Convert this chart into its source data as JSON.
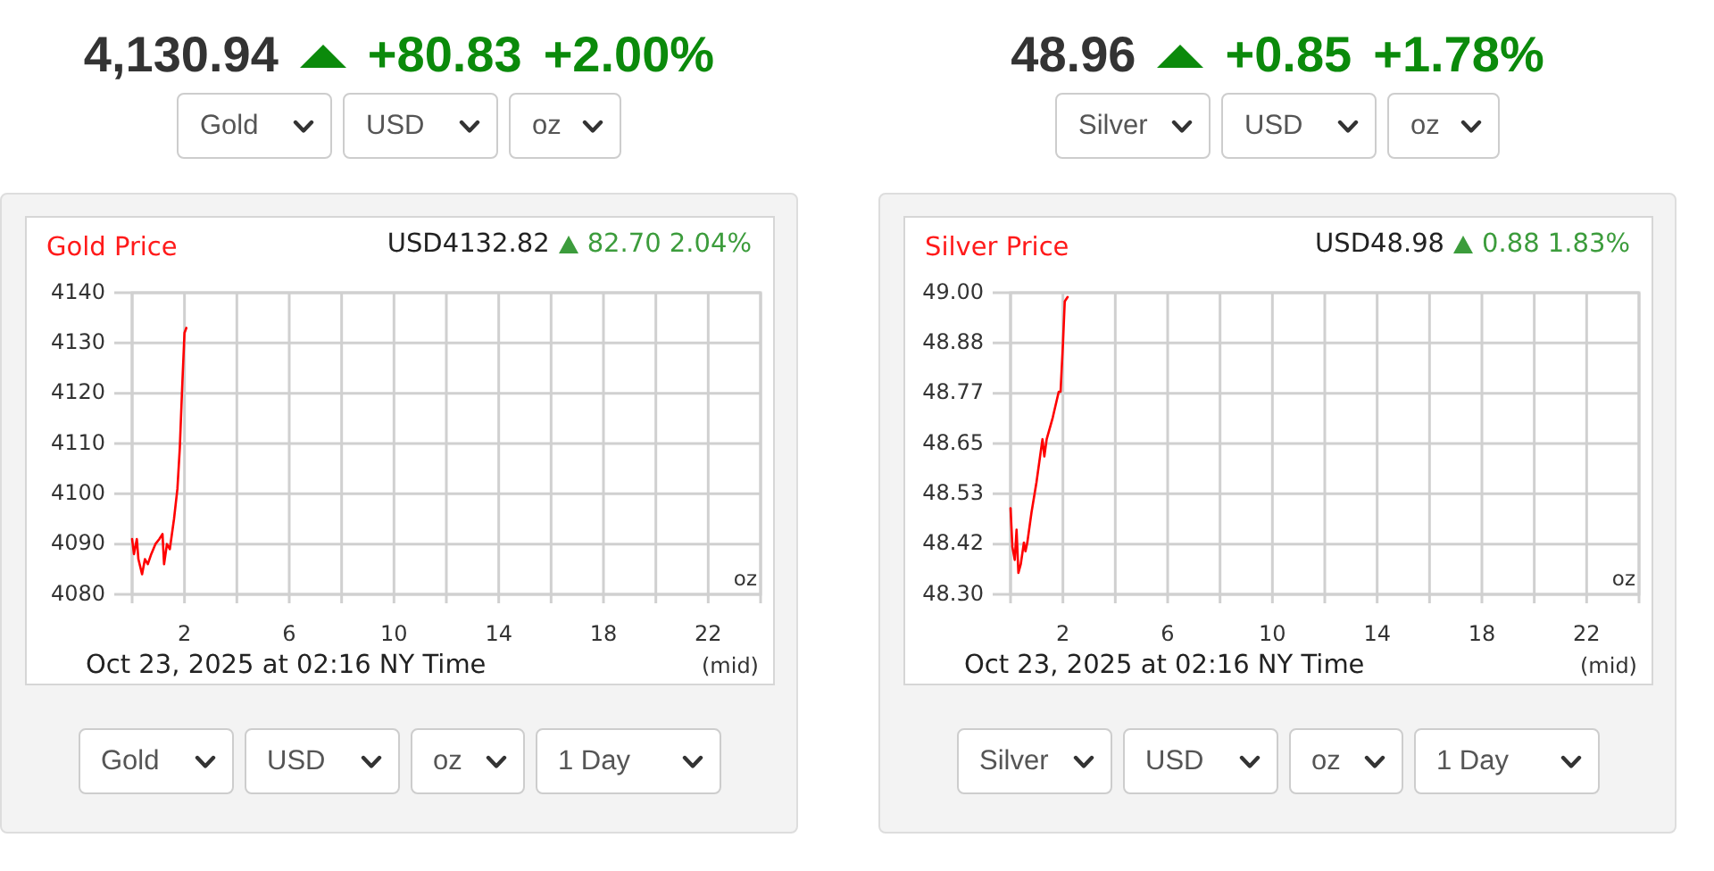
{
  "chart_data": [
    {
      "type": "line",
      "title": "Gold Price",
      "subtitle": "USD4132.82",
      "annotations": [
        "4,130.94",
        "+80.83",
        "+2.00%",
        "Gold",
        "USD",
        "oz",
        "82.70 2.04%",
        "oz",
        "Oct 23, 2025 at 02:16 NY Time",
        "(mid)",
        "Gold",
        "USD",
        "oz",
        "1 Day"
      ],
      "x": [
        0,
        0.07,
        0.18,
        0.24,
        0.38,
        0.49,
        0.6,
        0.73,
        0.89,
        1.04,
        1.16,
        1.22,
        1.33,
        1.44,
        1.6,
        1.73,
        1.82,
        1.91,
        2.0,
        2.07
      ],
      "series": [
        {
          "color": "#ff0000",
          "values": [
            4091,
            4088,
            4091,
            4087,
            4084,
            4087,
            4086,
            4088,
            4090,
            4091,
            4092,
            4086,
            4090,
            4089,
            4095,
            4101,
            4109,
            4121,
            4132,
            4133
          ]
        }
      ],
      "xlim": [
        0,
        24
      ],
      "xticks": [
        {
          "value": 0,
          "label": null
        },
        2,
        {
          "value": 4,
          "label": null
        },
        6,
        {
          "value": 8,
          "label": null
        },
        10,
        {
          "value": 12,
          "label": null
        },
        14,
        {
          "value": 16,
          "label": null
        },
        18,
        {
          "value": 20,
          "label": null
        },
        22,
        {
          "value": 24,
          "label": null
        }
      ],
      "ylim": [
        4080,
        4140
      ],
      "yticks": [
        4080,
        4090,
        4100,
        4110,
        4120,
        4130,
        4140
      ],
      "grid": true
    },
    {
      "type": "line",
      "title": "Silver Price",
      "subtitle": "USD48.98",
      "annotations": [
        "48.96",
        "+0.85",
        "+1.78%",
        "Silver",
        "USD",
        "oz",
        "0.88 1.83%",
        "oz",
        "Oct 23, 2025 at 02:16 NY Time",
        "(mid)",
        "Silver",
        "USD",
        "oz",
        "1 Day"
      ],
      "x": [
        0,
        0.07,
        0.16,
        0.23,
        0.3,
        0.39,
        0.51,
        0.57,
        0.64,
        0.8,
        0.99,
        1.15,
        1.22,
        1.29,
        1.38,
        1.61,
        1.84,
        1.91,
        2.0,
        2.07,
        2.18
      ],
      "series": [
        {
          "color": "#ff0000",
          "values": [
            48.5,
            48.41,
            48.38,
            48.45,
            48.35,
            48.37,
            48.42,
            48.4,
            48.42,
            48.49,
            48.56,
            48.63,
            48.66,
            48.62,
            48.66,
            48.71,
            48.77,
            48.77,
            48.88,
            48.98,
            48.99
          ]
        }
      ],
      "xlim": [
        0,
        24
      ],
      "xticks": [
        {
          "value": 0,
          "label": null
        },
        2,
        {
          "value": 4,
          "label": null
        },
        6,
        {
          "value": 8,
          "label": null
        },
        10,
        {
          "value": 12,
          "label": null
        },
        14,
        {
          "value": 16,
          "label": null
        },
        18,
        {
          "value": 20,
          "label": null
        },
        22,
        {
          "value": 24,
          "label": null
        }
      ],
      "ylim": [
        48.3,
        49.0
      ],
      "yticks": [
        {
          "value": 48.3,
          "label": "48.30"
        },
        {
          "value": 48.41667,
          "label": "48.42"
        },
        {
          "value": 48.53333,
          "label": "48.53"
        },
        {
          "value": 48.65,
          "label": "48.65"
        },
        {
          "value": 48.76667,
          "label": "48.77"
        },
        {
          "value": 48.88333,
          "label": "48.88"
        },
        {
          "value": 49.0,
          "label": "49.00"
        }
      ],
      "grid": true
    }
  ]
}
